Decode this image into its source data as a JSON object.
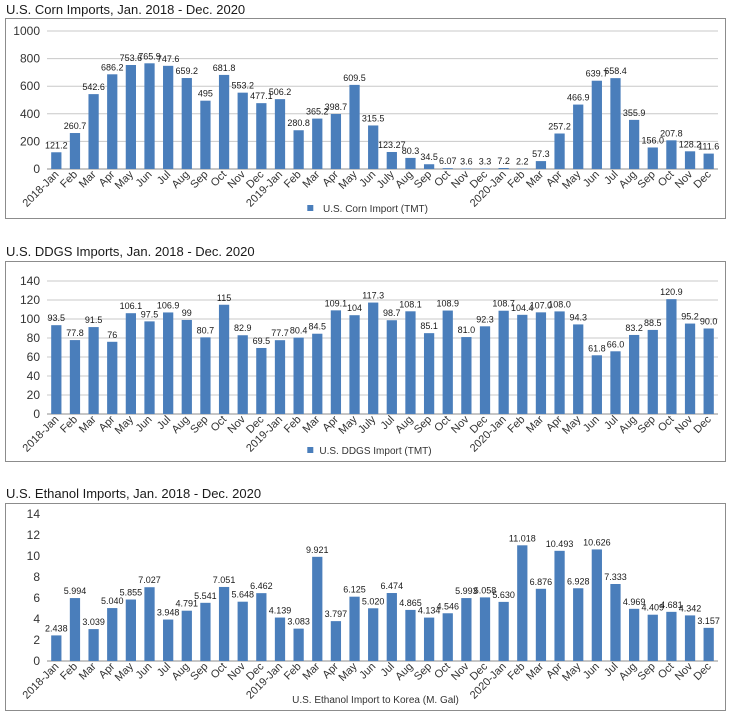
{
  "chart_data": [
    {
      "type": "bar",
      "title": "U.S. Corn Imports, Jan. 2018 - Dec. 2020",
      "categories": [
        "2018-Jan",
        "Feb",
        "Mar",
        "Apr",
        "May",
        "Jun",
        "Jul",
        "Aug",
        "Sep",
        "Oct",
        "Nov",
        "Dec",
        "2019-Jan",
        "Feb",
        "Mar",
        "Apr",
        "May",
        "Jun",
        "July",
        "Aug",
        "Sep",
        "Oct",
        "Nov",
        "Dec",
        "2020-Jan",
        "Feb",
        "Mar",
        "Apr",
        "May",
        "Jun",
        "Jul",
        "Aug",
        "Sep",
        "Oct",
        "Nov",
        "Dec"
      ],
      "series": [
        {
          "name": "U.S. Corn Import (TMT)",
          "values": [
            121.2,
            260.7,
            542.6,
            686.2,
            753.6,
            765.9,
            747.6,
            659.2,
            495,
            681.8,
            553.2,
            477.1,
            506.2,
            280.8,
            365.2,
            398.7,
            609.5,
            315.5,
            123.27,
            80.3,
            34.5,
            6.07,
            3.6,
            3.3,
            7.2,
            2.2,
            57.3,
            257.2,
            466.9,
            639.7,
            658.4,
            355.9,
            156.0,
            207.8,
            128.2,
            111.6
          ],
          "labels": [
            "121.2",
            "260.7",
            "542.6",
            "686.2",
            "753.6",
            "765.9",
            "747.6",
            "659.2",
            "495",
            "681.8",
            "553.2",
            "477.1",
            "506.2",
            "280.8",
            "365.2",
            "398.7",
            "609.5",
            "315.5",
            "123.27",
            "80.3",
            "34.5",
            "6.07",
            "3.6",
            "3.3",
            "7.2",
            "2.2",
            "57.3",
            "257.2",
            "466.9",
            "639.7",
            "658.4",
            "355.9",
            "156.0",
            "207.8",
            "128.2",
            "111.6"
          ]
        }
      ],
      "ylim": [
        0,
        1000
      ],
      "yticks": [
        "0",
        "200",
        "400",
        "600",
        "800",
        "1000"
      ],
      "grid": true,
      "legend": "bottom",
      "color": "#4a7ebb"
    },
    {
      "type": "bar",
      "title": "U.S. DDGS Imports, Jan. 2018 - Dec. 2020",
      "categories": [
        "2018-Jan",
        "Feb",
        "Mar",
        "Apr",
        "May",
        "Jun",
        "Jul",
        "Aug",
        "Sep",
        "Oct",
        "Nov",
        "Dec",
        "2019-Jan",
        "Feb",
        "Mar",
        "Apr",
        "May",
        "July",
        "Jul",
        "Aug",
        "Sep",
        "Oct",
        "Nov",
        "Dec",
        "2020-Jan",
        "Feb",
        "Mar",
        "Apr",
        "May",
        "Jun",
        "Jul",
        "Aug",
        "Sep",
        "Oct",
        "Nov",
        "Dec"
      ],
      "series": [
        {
          "name": "U.S. DDGS Import (TMT)",
          "values": [
            93.5,
            77.8,
            91.5,
            76,
            106.1,
            97.5,
            106.9,
            99,
            80.7,
            115,
            82.9,
            69.5,
            77.7,
            80.4,
            84.5,
            109.1,
            104,
            117.3,
            98.7,
            108.1,
            85.1,
            108.9,
            81.0,
            92.3,
            108.7,
            104.4,
            107.0,
            108.0,
            94.3,
            61.8,
            66.0,
            83.2,
            88.5,
            120.9,
            95.2,
            90.0
          ],
          "labels": [
            "93.5",
            "77.8",
            "91.5",
            "76",
            "106.1",
            "97.5",
            "106.9",
            "99",
            "80.7",
            "115",
            "82.9",
            "69.5",
            "77.7",
            "80.4",
            "84.5",
            "109.1",
            "104",
            "117.3",
            "98.7",
            "108.1",
            "85.1",
            "108.9",
            "81.0",
            "92.3",
            "108.7",
            "104.4",
            "107.0",
            "108.0",
            "94.3",
            "61.8",
            "66.0",
            "83.2",
            "88.5",
            "120.9",
            "95.2",
            "90.0"
          ]
        }
      ],
      "ylim": [
        0,
        140
      ],
      "yticks": [
        "0",
        "20",
        "40",
        "60",
        "80",
        "100",
        "120",
        "140"
      ],
      "grid": true,
      "legend": "bottom",
      "color": "#4a7ebb"
    },
    {
      "type": "bar",
      "title": "U.S. Ethanol Imports, Jan. 2018 - Dec. 2020",
      "categories": [
        "2018-Jan",
        "Feb",
        "Mar",
        "Apr",
        "May",
        "Jun",
        "Jul",
        "Aug",
        "Sep",
        "Oct",
        "Nov",
        "Dec",
        "2019-Jan",
        "Feb",
        "Mar",
        "Apr",
        "May",
        "Jun",
        "Jul",
        "Aug",
        "Sep",
        "Oct",
        "Nov",
        "Dec",
        "2020-Jan",
        "Feb",
        "Mar",
        "Apr",
        "May",
        "Jun",
        "Jul",
        "Aug",
        "Sep",
        "Oct",
        "Nov",
        "Dec"
      ],
      "series": [
        {
          "name": "U.S. Ethanol Import to Korea (M. Gal)",
          "values": [
            2.438,
            5.994,
            3.039,
            5.04,
            5.855,
            7.027,
            3.948,
            4.791,
            5.541,
            7.051,
            5.648,
            6.462,
            4.139,
            3.083,
            9.921,
            3.797,
            6.125,
            5.02,
            6.474,
            4.865,
            4.134,
            4.546,
            5.993,
            6.058,
            5.63,
            11.018,
            6.876,
            10.493,
            6.928,
            10.626,
            7.333,
            4.969,
            4.409,
            4.681,
            4.342,
            3.157
          ],
          "labels": [
            "2.438",
            "5.994",
            "3.039",
            "5.040",
            "5.855",
            "7.027",
            "3.948",
            "4.791",
            "5.541",
            "7.051",
            "5.648",
            "6.462",
            "4.139",
            "3.083",
            "9.921",
            "3.797",
            "6.125",
            "5.020",
            "6.474",
            "4.865",
            "4.134",
            "4.546",
            "5.993",
            "6.058",
            "5.630",
            "11.018",
            "6.876",
            "10.493",
            "6.928",
            "10.626",
            "7.333",
            "4.969",
            "4.409",
            "4.681",
            "4.342",
            "3.157"
          ]
        }
      ],
      "ylim": [
        0,
        14
      ],
      "yticks": [
        "0",
        "2",
        "4",
        "6",
        "8",
        "10",
        "12",
        "14"
      ],
      "grid": false,
      "legend": "bottom",
      "color": "#4a7ebb"
    }
  ]
}
